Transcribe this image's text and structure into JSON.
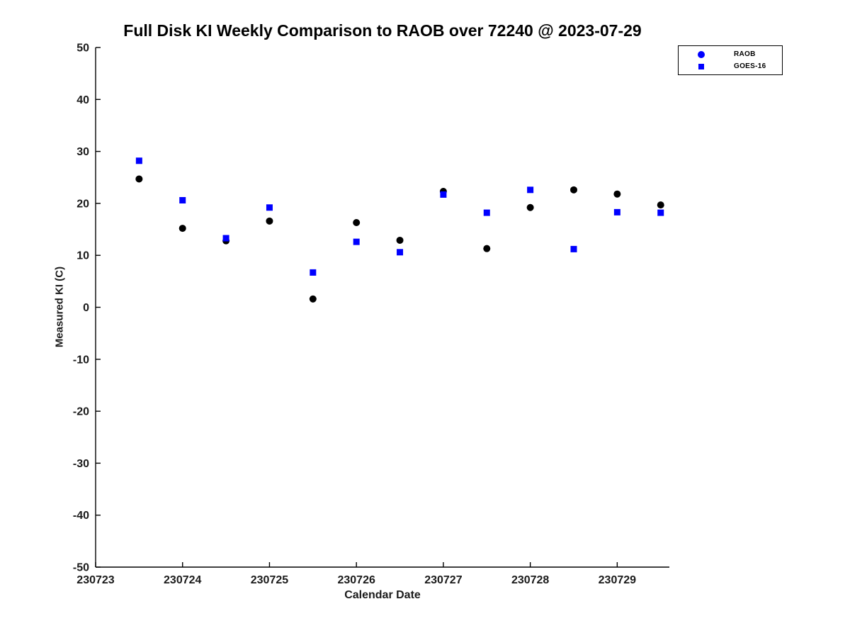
{
  "title": "Full Disk KI Weekly Comparison to RAOB over 72240 @ 2023-07-29",
  "xlabel": "Calendar Date",
  "ylabel": "Measured KI (C)",
  "colors": {
    "axis": "#000000",
    "tick_label": "#1a1a1a",
    "raob_point": "#000000",
    "goes_point": "#0000ff",
    "legend_marker": "#0000ff",
    "background": "#ffffff"
  },
  "chart_data": {
    "type": "scatter",
    "title": "Full Disk KI Weekly Comparison to RAOB over 72240 @ 2023-07-29",
    "xlabel": "Calendar Date",
    "ylabel": "Measured KI (C)",
    "xlim": [
      230723,
      230729.6
    ],
    "ylim": [
      -50,
      50
    ],
    "x_ticks": [
      230723,
      230724,
      230725,
      230726,
      230727,
      230728,
      230729
    ],
    "y_ticks": [
      -50,
      -40,
      -30,
      -20,
      -10,
      0,
      10,
      20,
      30,
      40,
      50
    ],
    "grid": false,
    "legend_position": "top-right",
    "series": [
      {
        "name": "RAOB",
        "marker": "circle",
        "color": "#000000",
        "legend_color": "#0000ff",
        "x": [
          230723.5,
          230724.0,
          230724.5,
          230725.0,
          230725.5,
          230726.0,
          230726.5,
          230727.0,
          230727.5,
          230728.0,
          230728.5,
          230729.0,
          230729.5
        ],
        "y": [
          24.7,
          15.2,
          12.8,
          16.6,
          1.6,
          16.3,
          12.9,
          22.3,
          11.3,
          19.2,
          22.6,
          21.8,
          19.7
        ]
      },
      {
        "name": "GOES-16",
        "marker": "square",
        "color": "#0000ff",
        "legend_color": "#0000ff",
        "x": [
          230723.5,
          230724.0,
          230724.5,
          230725.0,
          230725.5,
          230726.0,
          230726.5,
          230727.0,
          230727.5,
          230728.0,
          230728.5,
          230729.0,
          230729.5
        ],
        "y": [
          28.2,
          20.6,
          13.3,
          19.2,
          6.7,
          12.6,
          10.6,
          21.7,
          18.2,
          22.6,
          11.2,
          18.3,
          18.2
        ]
      }
    ]
  }
}
